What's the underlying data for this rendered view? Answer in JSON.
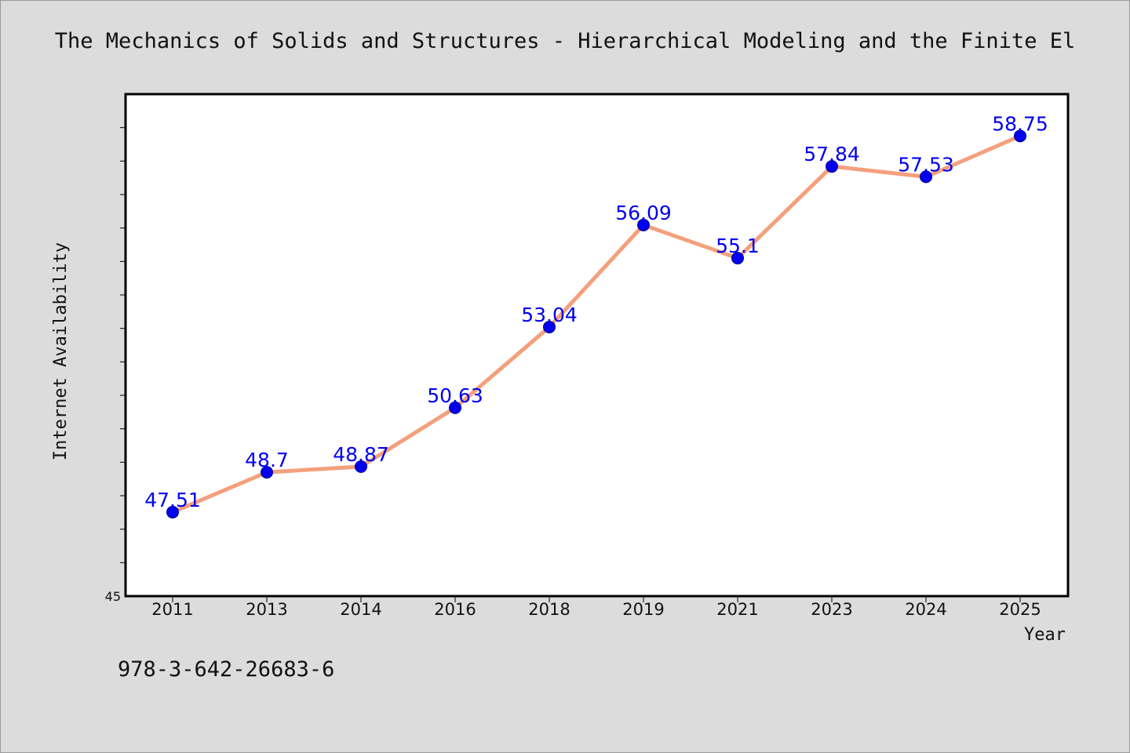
{
  "footer": {
    "isbn": "978-3-642-26683-6"
  },
  "chart_data": {
    "type": "line",
    "title": "The Mechanics of Solids and Structures - Hierarchical Modeling and the Finite El",
    "xlabel": "Year",
    "ylabel": "Internet Availability",
    "categories": [
      "2011",
      "2013",
      "2014",
      "2016",
      "2018",
      "2019",
      "2021",
      "2023",
      "2024",
      "2025"
    ],
    "values": [
      47.51,
      48.7,
      48.87,
      50.63,
      53.04,
      56.09,
      55.1,
      57.84,
      57.53,
      58.75
    ],
    "data_labels": [
      "47.51",
      "48.7",
      "48.87",
      "50.63",
      "53.04",
      "56.09",
      "55.1",
      "57.84",
      "57.53",
      "58.75"
    ],
    "ylim": [
      45,
      60
    ],
    "y_tick_labels": [
      "45"
    ],
    "y_minor_tick_step": 1,
    "grid": false,
    "legend": "none",
    "colors": {
      "line": "#f4a07c",
      "marker": "#0000ee",
      "data_label": "#0000ee",
      "plot_background": "#ffffff",
      "page_background": "#dcdcdc"
    }
  }
}
